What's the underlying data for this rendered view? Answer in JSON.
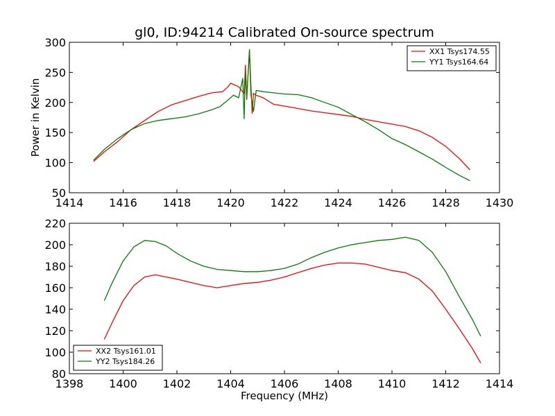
{
  "figure": {
    "title": "gl0, ID:94214 Calibrated On-source spectrum"
  },
  "chart_data": [
    {
      "type": "line",
      "ylabel": "Power in Kelvin",
      "xlabel": "",
      "xlim": [
        1414,
        1430
      ],
      "ylim": [
        50,
        300
      ],
      "xticks": [
        "1414",
        "1416",
        "1418",
        "1420",
        "1422",
        "1424",
        "1426",
        "1428",
        "1430"
      ],
      "yticks": [
        "50",
        "100",
        "150",
        "200",
        "250",
        "300"
      ],
      "legend_position": "top-right",
      "grid": false,
      "series": [
        {
          "name": "XX1 Tsys174.55",
          "color": "#ff0000",
          "x": [
            1414.9,
            1415.3,
            1415.8,
            1416.3,
            1416.8,
            1417.3,
            1417.8,
            1418.3,
            1418.8,
            1419.3,
            1419.7,
            1419.9,
            1420.0,
            1420.3,
            1420.5,
            1420.55,
            1420.6,
            1420.65,
            1420.7,
            1420.75,
            1420.8,
            1420.85,
            1420.95,
            1421.2,
            1421.6,
            1422.0,
            1422.5,
            1423.0,
            1423.5,
            1424.0,
            1424.5,
            1425.0,
            1425.5,
            1426.0,
            1426.5,
            1427.0,
            1427.5,
            1428.0,
            1428.5,
            1428.9
          ],
          "y": [
            102,
            118,
            135,
            155,
            170,
            185,
            196,
            203,
            210,
            216,
            218,
            226,
            232,
            226,
            215,
            262,
            205,
            250,
            288,
            230,
            182,
            215,
            212,
            208,
            197,
            194,
            190,
            186,
            183,
            180,
            177,
            172,
            168,
            164,
            160,
            153,
            142,
            127,
            107,
            88
          ]
        },
        {
          "name": "YY1 Tsys164.64",
          "color": "#008000",
          "x": [
            1414.9,
            1415.3,
            1415.8,
            1416.3,
            1416.8,
            1417.3,
            1417.8,
            1418.3,
            1418.8,
            1419.3,
            1419.6,
            1419.9,
            1420.1,
            1420.3,
            1420.45,
            1420.5,
            1420.55,
            1420.6,
            1420.7,
            1420.75,
            1420.85,
            1420.95,
            1421.2,
            1421.6,
            1422.0,
            1422.5,
            1423.0,
            1423.5,
            1424.0,
            1424.5,
            1425.0,
            1425.5,
            1426.0,
            1426.5,
            1427.0,
            1427.5,
            1428.0,
            1428.5,
            1428.9
          ],
          "y": [
            104,
            122,
            140,
            155,
            165,
            170,
            173,
            176,
            181,
            188,
            193,
            204,
            212,
            208,
            240,
            173,
            252,
            210,
            286,
            213,
            185,
            220,
            218,
            216,
            214,
            213,
            208,
            200,
            192,
            180,
            168,
            155,
            140,
            130,
            118,
            106,
            92,
            79,
            70
          ]
        }
      ]
    },
    {
      "type": "line",
      "ylabel": "",
      "xlabel": "Frequency (MHz)",
      "xlim": [
        1398,
        1414
      ],
      "ylim": [
        80,
        220
      ],
      "xticks": [
        "1398",
        "1400",
        "1402",
        "1404",
        "1406",
        "1408",
        "1410",
        "1412",
        "1414"
      ],
      "yticks": [
        "80",
        "100",
        "120",
        "140",
        "160",
        "180",
        "200",
        "220"
      ],
      "legend_position": "lower-left",
      "grid": false,
      "series": [
        {
          "name": "XX2 Tsys161.01",
          "color": "#ff0000",
          "x": [
            1399.3,
            1399.6,
            1400.0,
            1400.4,
            1400.8,
            1401.2,
            1401.6,
            1402.0,
            1402.5,
            1403.0,
            1403.5,
            1404.0,
            1404.5,
            1405.0,
            1405.5,
            1406.0,
            1406.5,
            1407.0,
            1407.5,
            1408.0,
            1408.5,
            1409.0,
            1409.5,
            1410.0,
            1410.5,
            1411.0,
            1411.5,
            1412.0,
            1412.5,
            1413.0,
            1413.3
          ],
          "y": [
            112,
            128,
            148,
            162,
            170,
            172,
            170,
            168,
            165,
            162,
            160,
            162,
            164,
            165,
            167,
            170,
            174,
            178,
            181,
            183,
            183,
            182,
            179,
            176,
            174,
            168,
            157,
            140,
            122,
            103,
            90
          ]
        },
        {
          "name": "YY2 Tsys184.26",
          "color": "#008000",
          "x": [
            1399.3,
            1399.6,
            1400.0,
            1400.4,
            1400.8,
            1401.2,
            1401.6,
            1402.0,
            1402.5,
            1403.0,
            1403.5,
            1404.0,
            1404.5,
            1405.0,
            1405.5,
            1406.0,
            1406.5,
            1407.0,
            1407.5,
            1408.0,
            1408.5,
            1409.0,
            1409.5,
            1410.0,
            1410.5,
            1411.0,
            1411.5,
            1412.0,
            1412.5,
            1413.0,
            1413.3
          ],
          "y": [
            148,
            165,
            185,
            198,
            204,
            203,
            199,
            192,
            185,
            180,
            177,
            176,
            175,
            175,
            176,
            178,
            182,
            188,
            193,
            197,
            200,
            202,
            204,
            205,
            207,
            204,
            193,
            175,
            152,
            130,
            115
          ]
        }
      ]
    }
  ]
}
